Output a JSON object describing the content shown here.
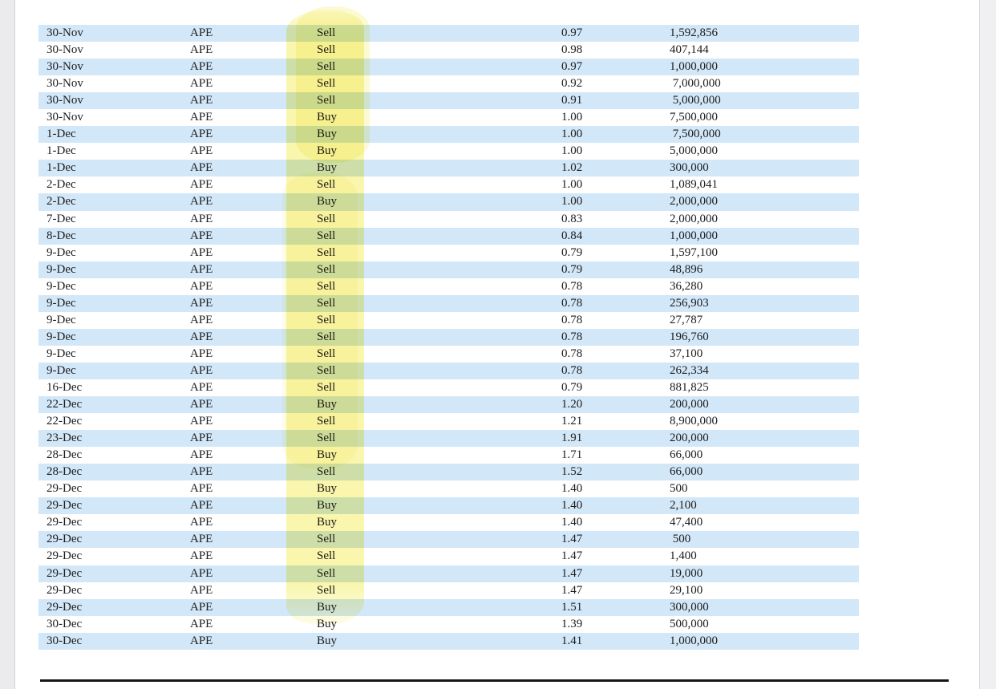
{
  "colors": {
    "row_stripe": "#d2e7f8",
    "highlighter": "#f4ec5c",
    "rule_color": "#161616",
    "text": "#1c1c1c"
  },
  "table": {
    "rows": [
      {
        "date": "30-Nov",
        "ticker": "APE",
        "action": "Sell",
        "price": "0.97",
        "quantity": "1,592,856"
      },
      {
        "date": "30-Nov",
        "ticker": "APE",
        "action": "Sell",
        "price": "0.98",
        "quantity": "407,144"
      },
      {
        "date": "30-Nov",
        "ticker": "APE",
        "action": "Sell",
        "price": "0.97",
        "quantity": "1,000,000"
      },
      {
        "date": "30-Nov",
        "ticker": "APE",
        "action": "Sell",
        "price": "0.92",
        "quantity": " 7,000,000"
      },
      {
        "date": "30-Nov",
        "ticker": "APE",
        "action": "Sell",
        "price": "0.91",
        "quantity": " 5,000,000"
      },
      {
        "date": "30-Nov",
        "ticker": "APE",
        "action": "Buy",
        "price": "1.00",
        "quantity": "7,500,000"
      },
      {
        "date": "1-Dec",
        "ticker": "APE",
        "action": "Buy",
        "price": "1.00",
        "quantity": " 7,500,000"
      },
      {
        "date": "1-Dec",
        "ticker": "APE",
        "action": "Buy",
        "price": "1.00",
        "quantity": "5,000,000"
      },
      {
        "date": "1-Dec",
        "ticker": "APE",
        "action": "Buy",
        "price": "1.02",
        "quantity": "300,000"
      },
      {
        "date": "2-Dec",
        "ticker": "APE",
        "action": "Sell",
        "price": "1.00",
        "quantity": "1,089,041"
      },
      {
        "date": "2-Dec",
        "ticker": "APE",
        "action": "Buy",
        "price": "1.00",
        "quantity": "2,000,000"
      },
      {
        "date": "7-Dec",
        "ticker": "APE",
        "action": "Sell",
        "price": "0.83",
        "quantity": "2,000,000"
      },
      {
        "date": "8-Dec",
        "ticker": "APE",
        "action": "Sell",
        "price": "0.84",
        "quantity": "1,000,000"
      },
      {
        "date": "9-Dec",
        "ticker": "APE",
        "action": "Sell",
        "price": "0.79",
        "quantity": "1,597,100"
      },
      {
        "date": "9-Dec",
        "ticker": "APE",
        "action": "Sell",
        "price": "0.79",
        "quantity": "48,896"
      },
      {
        "date": "9-Dec",
        "ticker": "APE",
        "action": "Sell",
        "price": "0.78",
        "quantity": "36,280"
      },
      {
        "date": "9-Dec",
        "ticker": "APE",
        "action": "Sell",
        "price": "0.78",
        "quantity": "256,903"
      },
      {
        "date": "9-Dec",
        "ticker": "APE",
        "action": "Sell",
        "price": "0.78",
        "quantity": "27,787"
      },
      {
        "date": "9-Dec",
        "ticker": "APE",
        "action": "Sell",
        "price": "0.78",
        "quantity": "196,760"
      },
      {
        "date": "9-Dec",
        "ticker": "APE",
        "action": "Sell",
        "price": "0.78",
        "quantity": "37,100"
      },
      {
        "date": "9-Dec",
        "ticker": "APE",
        "action": "Sell",
        "price": "0.78",
        "quantity": "262,334"
      },
      {
        "date": "16-Dec",
        "ticker": "APE",
        "action": "Sell",
        "price": "0.79",
        "quantity": "881,825"
      },
      {
        "date": "22-Dec",
        "ticker": "APE",
        "action": "Buy",
        "price": "1.20",
        "quantity": "200,000"
      },
      {
        "date": "22-Dec",
        "ticker": "APE",
        "action": "Sell",
        "price": "1.21",
        "quantity": "8,900,000"
      },
      {
        "date": "23-Dec",
        "ticker": "APE",
        "action": "Sell",
        "price": "1.91",
        "quantity": "200,000"
      },
      {
        "date": "28-Dec",
        "ticker": "APE",
        "action": "Buy",
        "price": "1.71",
        "quantity": "66,000"
      },
      {
        "date": "28-Dec",
        "ticker": "APE",
        "action": "Sell",
        "price": "1.52",
        "quantity": "66,000"
      },
      {
        "date": "29-Dec",
        "ticker": "APE",
        "action": "Buy",
        "price": "1.40",
        "quantity": "500"
      },
      {
        "date": "29-Dec",
        "ticker": "APE",
        "action": "Buy",
        "price": "1.40",
        "quantity": "2,100"
      },
      {
        "date": "29-Dec",
        "ticker": "APE",
        "action": "Buy",
        "price": "1.40",
        "quantity": "47,400"
      },
      {
        "date": "29-Dec",
        "ticker": "APE",
        "action": "Sell",
        "price": "1.47",
        "quantity": " 500"
      },
      {
        "date": "29-Dec",
        "ticker": "APE",
        "action": "Sell",
        "price": "1.47",
        "quantity": "1,400"
      },
      {
        "date": "29-Dec",
        "ticker": "APE",
        "action": "Sell",
        "price": "1.47",
        "quantity": "19,000"
      },
      {
        "date": "29-Dec",
        "ticker": "APE",
        "action": "Sell",
        "price": "1.47",
        "quantity": "29,100"
      },
      {
        "date": "29-Dec",
        "ticker": "APE",
        "action": "Buy",
        "price": "1.51",
        "quantity": "300,000"
      },
      {
        "date": "30-Dec",
        "ticker": "APE",
        "action": "Buy",
        "price": "1.39",
        "quantity": "500,000"
      },
      {
        "date": "30-Dec",
        "ticker": "APE",
        "action": "Buy",
        "price": "1.41",
        "quantity": "1,000,000"
      }
    ]
  }
}
